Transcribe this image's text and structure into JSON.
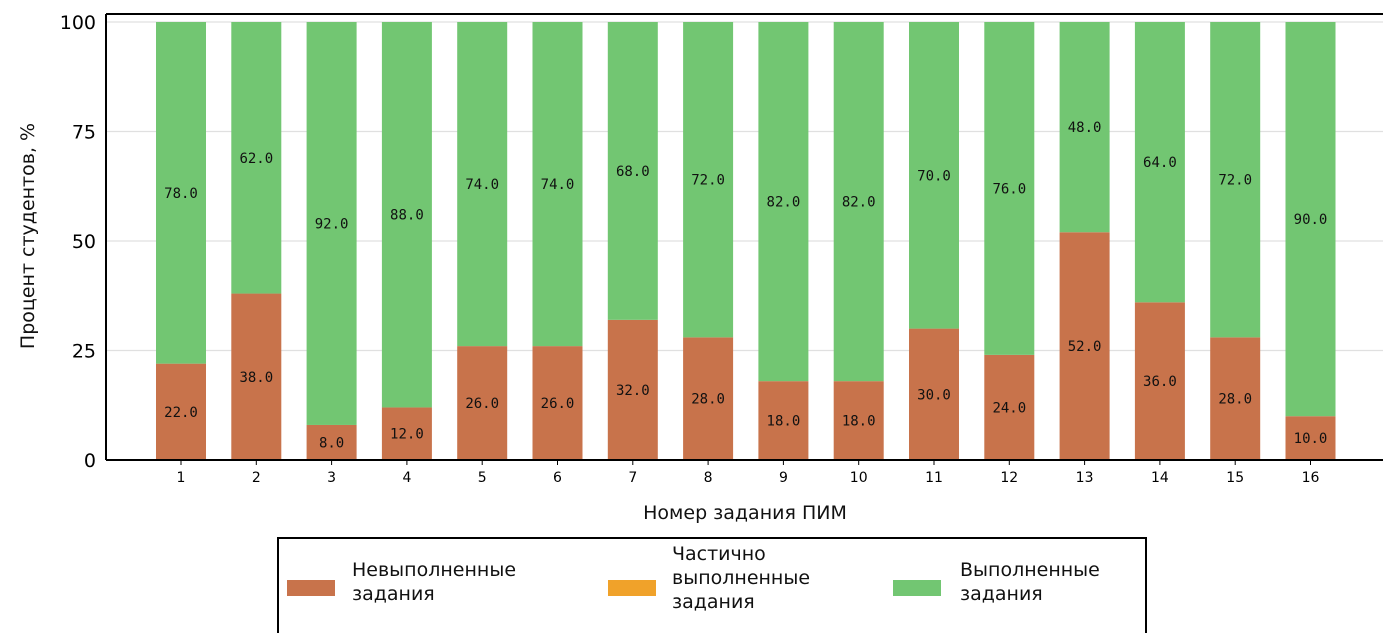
{
  "chart_data": {
    "type": "bar",
    "stacked": true,
    "categories": [
      "1",
      "2",
      "3",
      "4",
      "5",
      "6",
      "7",
      "8",
      "9",
      "10",
      "11",
      "12",
      "13",
      "14",
      "15",
      "16"
    ],
    "series": [
      {
        "name": "Невыполненные задания",
        "color": "#c8734b",
        "values": [
          22,
          38,
          8,
          12,
          26,
          26,
          32,
          28,
          18,
          18,
          30,
          24,
          52,
          36,
          28,
          10
        ],
        "labels": [
          "22.0",
          "38.0",
          "8.0",
          "12.0",
          "26.0",
          "26.0",
          "32.0",
          "28.0",
          "18.0",
          "18.0",
          "30.0",
          "24.0",
          "52.0",
          "36.0",
          "28.0",
          "10.0"
        ]
      },
      {
        "name": "Частично выполненные задания",
        "color": "#f0a22a",
        "values": [
          0,
          0,
          0,
          0,
          0,
          0,
          0,
          0,
          0,
          0,
          0,
          0,
          0,
          0,
          0,
          0
        ],
        "labels": []
      },
      {
        "name": "Выполненные задания",
        "color": "#72c672",
        "values": [
          78,
          62,
          92,
          88,
          74,
          74,
          68,
          72,
          82,
          82,
          70,
          76,
          48,
          64,
          72,
          90
        ],
        "labels": [
          "78.0",
          "62.0",
          "92.0",
          "88.0",
          "74.0",
          "74.0",
          "68.0",
          "72.0",
          "82.0",
          "82.0",
          "70.0",
          "76.0",
          "48.0",
          "64.0",
          "72.0",
          "90.0"
        ]
      }
    ],
    "xlabel": "Номер задания ПИМ",
    "ylabel": "Процент студентов, %",
    "ylim": [
      0,
      100
    ],
    "yticks": [
      "0",
      "25",
      "50",
      "75",
      "100"
    ],
    "grid": "horizontal",
    "legend_position": "bottom",
    "legend_lines": [
      [
        "Невыполненные",
        "задания"
      ],
      [
        "Частично",
        "выполненные",
        "задания"
      ],
      [
        "Выполненные",
        "задания"
      ]
    ]
  }
}
